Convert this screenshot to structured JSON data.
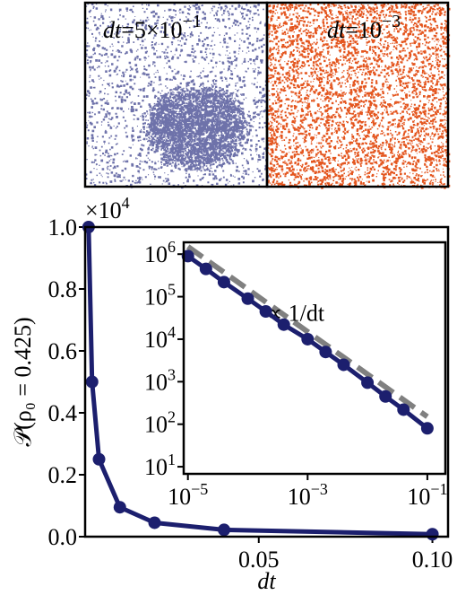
{
  "panels": [
    {
      "var": "dt",
      "text": "=5×10",
      "exponent": "−1",
      "color": "#6e72aa"
    },
    {
      "var": "dt",
      "text": "=10",
      "exponent": "−3",
      "color": "#e4561f"
    }
  ],
  "chart_data": [
    {
      "type": "line",
      "xlabel": "dt",
      "ylabel": "𝒫(ρ₀ = 0.425)",
      "offset_label": {
        "base": "×10",
        "exponent": "4"
      },
      "x": [
        0.001,
        0.002,
        0.004,
        0.01,
        0.02,
        0.04,
        0.1
      ],
      "series": [
        {
          "color": "#1c1f6e",
          "values": [
            1.0,
            0.5,
            0.25,
            0.095,
            0.045,
            0.022,
            0.008
          ]
        }
      ],
      "xlim": [
        0,
        0.1045
      ],
      "ylim": [
        0,
        1
      ],
      "xticks": [
        0.05,
        {
          "value": 0.1,
          "label": "0.10"
        }
      ],
      "yticks": [
        {
          "value": 0,
          "label": "0.0"
        },
        0.2,
        0.4,
        0.6,
        0.8,
        {
          "value": 1,
          "label": "1.0"
        }
      ]
    },
    {
      "type": "line",
      "xscale": "log",
      "yscale": "log",
      "x": [
        1e-05,
        2e-05,
        4e-05,
        0.0001,
        0.0002,
        0.0004,
        0.001,
        0.002,
        0.004,
        0.01,
        0.02,
        0.04,
        0.1
      ],
      "series": [
        {
          "color": "#1c1f6e",
          "values": [
            900000,
            450000,
            220000,
            90000,
            45000,
            22000,
            10000,
            5000,
            2500,
            950,
            450,
            220,
            80
          ]
        }
      ],
      "reference": {
        "color": "#808080",
        "x": [
          1e-05,
          0.1
        ],
        "values": [
          1500000,
          150
        ],
        "annotation": "∝ 1/dt"
      },
      "xlim": [
        8.5e-06,
        0.2
      ],
      "ylim": [
        6.8,
        1900000
      ],
      "xticks": [
        {
          "value": 1e-05,
          "label": "10",
          "exponent": "−5"
        },
        {
          "value": 0.001,
          "label": "10",
          "exponent": "−3"
        },
        {
          "value": 0.1,
          "label": "10",
          "exponent": "−1"
        }
      ],
      "yticks": [
        {
          "value": 10,
          "label": "10",
          "exponent": "1"
        },
        {
          "value": 100,
          "label": "10",
          "exponent": "2"
        },
        {
          "value": 1000,
          "label": "10",
          "exponent": "3"
        },
        {
          "value": 10000,
          "label": "10",
          "exponent": "4"
        },
        {
          "value": 100000,
          "label": "10",
          "exponent": "5"
        },
        {
          "value": 1000000,
          "label": "10",
          "exponent": "6"
        }
      ]
    }
  ]
}
